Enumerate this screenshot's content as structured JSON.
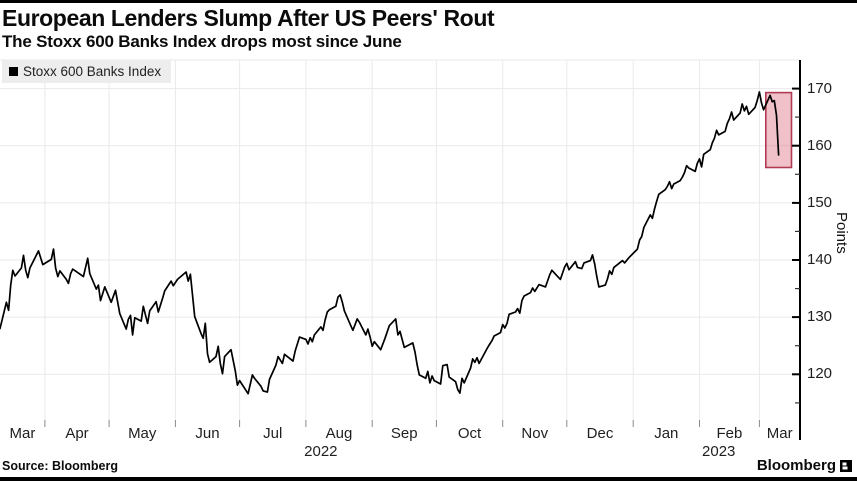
{
  "page": {
    "title": "European Lenders Slump After US Peers' Rout",
    "subtitle": "The Stoxx 600 Banks Index drops most since June",
    "source": "Source: Bloomberg",
    "brand": "Bloomberg"
  },
  "legend": {
    "label": "Stoxx 600 Banks Index"
  },
  "colors": {
    "line": "#000000",
    "highlight_fill": "#d9536b",
    "highlight_border": "#b03a52",
    "legend_bg": "#ededed",
    "grid": "#eaeaea",
    "axis": "#000000",
    "tick": "#333333",
    "text": "#111111"
  },
  "chart_data": {
    "type": "line",
    "title": "European Lenders Slump After US Peers' Rout",
    "subtitle": "The Stoxx 600 Banks Index drops most since June",
    "ylabel": "Points",
    "xlabel": "",
    "grid": true,
    "legend_position": "top-left",
    "ylim": [
      112,
      175
    ],
    "yticks_major": [
      120,
      130,
      140,
      150,
      160,
      170
    ],
    "yticks_minor": [
      115,
      125,
      135,
      145,
      155,
      165
    ],
    "x_domain": [
      "2022-03-11",
      "2023-03-20"
    ],
    "x_month_labels": [
      "Mar",
      "Apr",
      "May",
      "Jun",
      "Jul",
      "Aug",
      "Sep",
      "Oct",
      "Nov",
      "Dec",
      "Jan",
      "Feb",
      "Mar"
    ],
    "x_year_labels": [
      {
        "text": "2022",
        "anchor": "2022-08-08"
      },
      {
        "text": "2023",
        "anchor": "2023-02-10"
      }
    ],
    "highlight": {
      "x_start": "2023-03-04",
      "x_end": "2023-03-16",
      "y_low": 156.2,
      "y_high": 169.3,
      "fill_opacity": 0.36
    },
    "series": [
      {
        "name": "Stoxx 600 Banks Index",
        "points": [
          [
            "2022-03-11",
            128.0
          ],
          [
            "2022-03-14",
            132.6
          ],
          [
            "2022-03-15",
            131.2
          ],
          [
            "2022-03-16",
            135.6
          ],
          [
            "2022-03-17",
            138.2
          ],
          [
            "2022-03-18",
            137.2
          ],
          [
            "2022-03-21",
            138.6
          ],
          [
            "2022-03-22",
            140.8
          ],
          [
            "2022-03-23",
            138.2
          ],
          [
            "2022-03-24",
            136.9
          ],
          [
            "2022-03-25",
            138.6
          ],
          [
            "2022-03-29",
            141.6
          ],
          [
            "2022-03-31",
            139.2
          ],
          [
            "2022-04-04",
            140.1
          ],
          [
            "2022-04-05",
            141.9
          ],
          [
            "2022-04-06",
            138.6
          ],
          [
            "2022-04-07",
            137.1
          ],
          [
            "2022-04-08",
            138.1
          ],
          [
            "2022-04-11",
            136.6
          ],
          [
            "2022-04-12",
            135.9
          ],
          [
            "2022-04-13",
            137.6
          ],
          [
            "2022-04-14",
            138.4
          ],
          [
            "2022-04-19",
            137.1
          ],
          [
            "2022-04-21",
            140.3
          ],
          [
            "2022-04-22",
            137.6
          ],
          [
            "2022-04-25",
            134.9
          ],
          [
            "2022-04-26",
            135.6
          ],
          [
            "2022-04-27",
            132.9
          ],
          [
            "2022-04-29",
            135.3
          ],
          [
            "2022-05-02",
            132.6
          ],
          [
            "2022-05-04",
            134.7
          ],
          [
            "2022-05-06",
            130.6
          ],
          [
            "2022-05-09",
            127.9
          ],
          [
            "2022-05-10",
            129.6
          ],
          [
            "2022-05-11",
            130.3
          ],
          [
            "2022-05-12",
            126.9
          ],
          [
            "2022-05-13",
            129.9
          ],
          [
            "2022-05-16",
            129.3
          ],
          [
            "2022-05-17",
            131.9
          ],
          [
            "2022-05-19",
            128.9
          ],
          [
            "2022-05-20",
            131.1
          ],
          [
            "2022-05-23",
            132.7
          ],
          [
            "2022-05-24",
            130.9
          ],
          [
            "2022-05-26",
            133.3
          ],
          [
            "2022-05-27",
            134.6
          ],
          [
            "2022-05-30",
            136.3
          ],
          [
            "2022-05-31",
            135.5
          ],
          [
            "2022-06-02",
            136.6
          ],
          [
            "2022-06-06",
            137.9
          ],
          [
            "2022-06-07",
            136.3
          ],
          [
            "2022-06-08",
            137.5
          ],
          [
            "2022-06-09",
            133.9
          ],
          [
            "2022-06-10",
            130.1
          ],
          [
            "2022-06-13",
            127.1
          ],
          [
            "2022-06-14",
            126.3
          ],
          [
            "2022-06-15",
            128.9
          ],
          [
            "2022-06-16",
            123.6
          ],
          [
            "2022-06-17",
            122.1
          ],
          [
            "2022-06-20",
            123.1
          ],
          [
            "2022-06-21",
            124.9
          ],
          [
            "2022-06-22",
            121.9
          ],
          [
            "2022-06-23",
            120.1
          ],
          [
            "2022-06-24",
            123.1
          ],
          [
            "2022-06-27",
            124.3
          ],
          [
            "2022-06-29",
            120.6
          ],
          [
            "2022-06-30",
            118.1
          ],
          [
            "2022-07-01",
            118.9
          ],
          [
            "2022-07-05",
            116.6
          ],
          [
            "2022-07-07",
            119.9
          ],
          [
            "2022-07-08",
            119.3
          ],
          [
            "2022-07-11",
            117.9
          ],
          [
            "2022-07-12",
            117.1
          ],
          [
            "2022-07-14",
            116.9
          ],
          [
            "2022-07-15",
            119.1
          ],
          [
            "2022-07-18",
            121.6
          ],
          [
            "2022-07-19",
            123.1
          ],
          [
            "2022-07-21",
            121.9
          ],
          [
            "2022-07-22",
            123.5
          ],
          [
            "2022-07-26",
            122.3
          ],
          [
            "2022-07-27",
            124.1
          ],
          [
            "2022-07-29",
            126.5
          ],
          [
            "2022-08-01",
            126.1
          ],
          [
            "2022-08-02",
            125.3
          ],
          [
            "2022-08-03",
            126.4
          ],
          [
            "2022-08-04",
            125.7
          ],
          [
            "2022-08-05",
            126.9
          ],
          [
            "2022-08-08",
            128.3
          ],
          [
            "2022-08-09",
            127.7
          ],
          [
            "2022-08-10",
            129.5
          ],
          [
            "2022-08-11",
            130.9
          ],
          [
            "2022-08-12",
            131.3
          ],
          [
            "2022-08-15",
            131.9
          ],
          [
            "2022-08-16",
            133.5
          ],
          [
            "2022-08-17",
            133.9
          ],
          [
            "2022-08-18",
            132.7
          ],
          [
            "2022-08-19",
            131.1
          ],
          [
            "2022-08-22",
            128.5
          ],
          [
            "2022-08-23",
            127.7
          ],
          [
            "2022-08-25",
            129.7
          ],
          [
            "2022-08-26",
            129.1
          ],
          [
            "2022-08-29",
            126.9
          ],
          [
            "2022-08-30",
            127.9
          ],
          [
            "2022-08-31",
            126.5
          ],
          [
            "2022-09-01",
            124.9
          ],
          [
            "2022-09-02",
            125.7
          ],
          [
            "2022-09-05",
            124.3
          ],
          [
            "2022-09-07",
            126.3
          ],
          [
            "2022-09-09",
            128.5
          ],
          [
            "2022-09-12",
            129.7
          ],
          [
            "2022-09-13",
            126.9
          ],
          [
            "2022-09-14",
            127.5
          ],
          [
            "2022-09-16",
            124.7
          ],
          [
            "2022-09-20",
            125.5
          ],
          [
            "2022-09-21",
            123.9
          ],
          [
            "2022-09-22",
            121.7
          ],
          [
            "2022-09-23",
            119.9
          ],
          [
            "2022-09-26",
            119.3
          ],
          [
            "2022-09-27",
            120.5
          ],
          [
            "2022-09-28",
            118.5
          ],
          [
            "2022-09-29",
            119.7
          ],
          [
            "2022-09-30",
            118.9
          ],
          [
            "2022-10-03",
            118.3
          ],
          [
            "2022-10-04",
            121.5
          ],
          [
            "2022-10-06",
            121.7
          ],
          [
            "2022-10-07",
            119.5
          ],
          [
            "2022-10-10",
            118.7
          ],
          [
            "2022-10-11",
            117.3
          ],
          [
            "2022-10-12",
            116.7
          ],
          [
            "2022-10-13",
            119.3
          ],
          [
            "2022-10-14",
            118.5
          ],
          [
            "2022-10-17",
            121.1
          ],
          [
            "2022-10-18",
            122.7
          ],
          [
            "2022-10-19",
            122.1
          ],
          [
            "2022-10-20",
            122.9
          ],
          [
            "2022-10-21",
            121.9
          ],
          [
            "2022-10-25",
            124.7
          ],
          [
            "2022-10-26",
            125.3
          ],
          [
            "2022-10-27",
            125.9
          ],
          [
            "2022-10-28",
            126.7
          ],
          [
            "2022-10-31",
            127.3
          ],
          [
            "2022-11-01",
            128.7
          ],
          [
            "2022-11-02",
            128.1
          ],
          [
            "2022-11-03",
            128.9
          ],
          [
            "2022-11-04",
            130.5
          ],
          [
            "2022-11-07",
            130.9
          ],
          [
            "2022-11-08",
            131.5
          ],
          [
            "2022-11-09",
            130.7
          ],
          [
            "2022-11-10",
            132.9
          ],
          [
            "2022-11-11",
            133.7
          ],
          [
            "2022-11-14",
            134.3
          ],
          [
            "2022-11-15",
            135.1
          ],
          [
            "2022-11-16",
            134.5
          ],
          [
            "2022-11-18",
            135.7
          ],
          [
            "2022-11-21",
            135.3
          ],
          [
            "2022-11-23",
            137.4
          ],
          [
            "2022-11-24",
            138.2
          ],
          [
            "2022-11-25",
            137.8
          ],
          [
            "2022-11-28",
            136.6
          ],
          [
            "2022-11-30",
            138.8
          ],
          [
            "2022-12-01",
            139.4
          ],
          [
            "2022-12-02",
            138.3
          ],
          [
            "2022-12-05",
            139.7
          ],
          [
            "2022-12-06",
            138.7
          ],
          [
            "2022-12-08",
            138.5
          ],
          [
            "2022-12-09",
            139.5
          ],
          [
            "2022-12-12",
            139.9
          ],
          [
            "2022-12-13",
            140.9
          ],
          [
            "2022-12-14",
            139.3
          ],
          [
            "2022-12-15",
            137.1
          ],
          [
            "2022-12-16",
            135.3
          ],
          [
            "2022-12-19",
            135.6
          ],
          [
            "2022-12-20",
            136.7
          ],
          [
            "2022-12-21",
            138.1
          ],
          [
            "2022-12-22",
            137.5
          ],
          [
            "2022-12-23",
            138.7
          ],
          [
            "2022-12-27",
            139.9
          ],
          [
            "2022-12-28",
            139.5
          ],
          [
            "2022-12-30",
            140.4
          ],
          [
            "2023-01-03",
            141.9
          ],
          [
            "2023-01-04",
            143.5
          ],
          [
            "2023-01-05",
            144.1
          ],
          [
            "2023-01-06",
            145.7
          ],
          [
            "2023-01-09",
            147.9
          ],
          [
            "2023-01-10",
            147.3
          ],
          [
            "2023-01-11",
            148.9
          ],
          [
            "2023-01-12",
            150.3
          ],
          [
            "2023-01-13",
            151.5
          ],
          [
            "2023-01-16",
            152.3
          ],
          [
            "2023-01-17",
            152.9
          ],
          [
            "2023-01-18",
            153.7
          ],
          [
            "2023-01-19",
            152.5
          ],
          [
            "2023-01-20",
            153.3
          ],
          [
            "2023-01-23",
            153.9
          ],
          [
            "2023-01-24",
            154.5
          ],
          [
            "2023-01-25",
            155.3
          ],
          [
            "2023-01-26",
            156.5
          ],
          [
            "2023-01-27",
            156.1
          ],
          [
            "2023-01-30",
            155.5
          ],
          [
            "2023-01-31",
            156.9
          ],
          [
            "2023-02-01",
            157.7
          ],
          [
            "2023-02-02",
            156.3
          ],
          [
            "2023-02-03",
            158.5
          ],
          [
            "2023-02-06",
            159.3
          ],
          [
            "2023-02-07",
            160.5
          ],
          [
            "2023-02-08",
            161.3
          ],
          [
            "2023-02-09",
            162.7
          ],
          [
            "2023-02-10",
            161.9
          ],
          [
            "2023-02-13",
            162.5
          ],
          [
            "2023-02-14",
            163.9
          ],
          [
            "2023-02-15",
            164.7
          ],
          [
            "2023-02-16",
            165.9
          ],
          [
            "2023-02-17",
            164.5
          ],
          [
            "2023-02-20",
            165.7
          ],
          [
            "2023-02-21",
            167.3
          ],
          [
            "2023-02-22",
            166.1
          ],
          [
            "2023-02-23",
            166.9
          ],
          [
            "2023-02-24",
            165.5
          ],
          [
            "2023-02-27",
            166.7
          ],
          [
            "2023-02-28",
            167.9
          ],
          [
            "2023-03-01",
            169.4
          ],
          [
            "2023-03-02",
            167.5
          ],
          [
            "2023-03-03",
            166.3
          ],
          [
            "2023-03-06",
            168.8
          ],
          [
            "2023-03-07",
            167.7
          ],
          [
            "2023-03-08",
            167.9
          ],
          [
            "2023-03-09",
            165.3
          ],
          [
            "2023-03-10",
            158.4
          ]
        ]
      }
    ]
  }
}
